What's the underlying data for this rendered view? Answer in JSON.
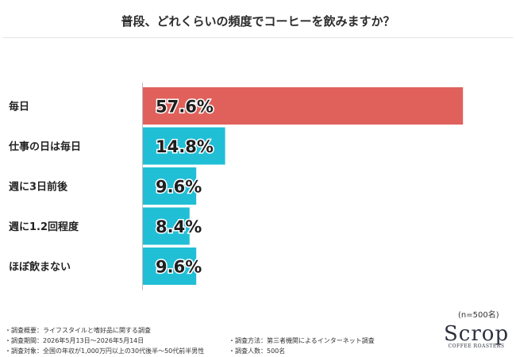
{
  "colors": {
    "highlight_bar": "#e0615c",
    "bar": "#20bfd6",
    "label_text": "#1e1e1e"
  },
  "chart_data": {
    "type": "bar",
    "orientation": "horizontal",
    "title": "普段、どれくらいの頻度でコーヒーを飲みますか？",
    "categories": [
      "毎日",
      "仕事の日は毎日",
      "週に3日前後",
      "週に1.2回程度",
      "ほぼ飲まない"
    ],
    "values": [
      57.6,
      14.8,
      9.6,
      8.4,
      9.6
    ],
    "value_labels": [
      "57.6%",
      "14.8%",
      "9.6%",
      "8.4%",
      "9.6%"
    ],
    "unit": "%",
    "xlim": [
      0,
      60
    ],
    "grid": false,
    "legend": "none"
  },
  "sample_size": "(n=500名)",
  "notes_left": [
    "・調査概要：ライフスタイルと嗜好品に関する調査",
    "・調査期間：2026年5月13日〜2026年5月14日",
    "・調査対象：全国の年収が1,000万円以上の30代後半〜50代前半男性"
  ],
  "notes_right": [
    "・調査方法：第三者機関によるインターネット調査",
    "・調査人数：500名"
  ],
  "logo": {
    "main": "Scrop",
    "sub": "COFFEE ROASTERS"
  }
}
